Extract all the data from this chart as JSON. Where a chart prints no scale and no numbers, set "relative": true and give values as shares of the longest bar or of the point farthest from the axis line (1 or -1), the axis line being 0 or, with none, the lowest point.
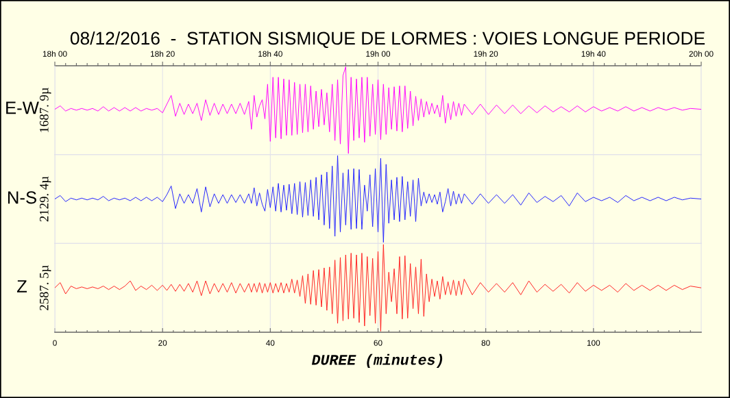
{
  "chart_data": [
    {
      "type": "line",
      "title": "08/12/2016  -  STATION SISMIQUE DE LORMES : VOIES LONGUE PERIODE",
      "ylabel": "1687. 9µ",
      "relative": true,
      "grid": "x",
      "tick_labels": "x",
      "xlim": [
        0,
        120
      ],
      "x2lim": [
        "2016-12-08T18:00",
        "2016-12-08T20:00"
      ],
      "x2ticks": [
        {
          "value": "2016-12-08T18:00",
          "label": "18h 00"
        },
        {
          "value": "2016-12-08T18:20",
          "label": "18h 20"
        },
        {
          "value": "2016-12-08T18:40",
          "label": "18h 40"
        },
        {
          "value": "2016-12-08T19:00",
          "label": "19h 00"
        },
        {
          "value": "2016-12-08T19:20",
          "label": "19h 20"
        },
        {
          "value": "2016-12-08T19:40",
          "label": "19h 40"
        },
        {
          "value": "2016-12-08T20:00",
          "label": "20h 00"
        },
        {
          "value": "2016-12-08T18:02",
          "label": null
        },
        {
          "value": "2016-12-08T18:04",
          "label": null
        },
        {
          "value": "2016-12-08T18:06",
          "label": null
        },
        {
          "value": "2016-12-08T18:08",
          "label": null
        },
        {
          "value": "2016-12-08T18:10",
          "label": null
        },
        {
          "value": "2016-12-08T18:12",
          "label": null
        },
        {
          "value": "2016-12-08T18:14",
          "label": null
        },
        {
          "value": "2016-12-08T18:16",
          "label": null
        },
        {
          "value": "2016-12-08T18:18",
          "label": null
        },
        {
          "value": "2016-12-08T18:22",
          "label": null
        },
        {
          "value": "2016-12-08T18:24",
          "label": null
        },
        {
          "value": "2016-12-08T18:26",
          "label": null
        },
        {
          "value": "2016-12-08T18:28",
          "label": null
        },
        {
          "value": "2016-12-08T18:30",
          "label": null
        },
        {
          "value": "2016-12-08T18:32",
          "label": null
        },
        {
          "value": "2016-12-08T18:34",
          "label": null
        },
        {
          "value": "2016-12-08T18:36",
          "label": null
        },
        {
          "value": "2016-12-08T18:38",
          "label": null
        },
        {
          "value": "2016-12-08T18:42",
          "label": null
        },
        {
          "value": "2016-12-08T18:44",
          "label": null
        },
        {
          "value": "2016-12-08T18:46",
          "label": null
        },
        {
          "value": "2016-12-08T18:48",
          "label": null
        },
        {
          "value": "2016-12-08T18:50",
          "label": null
        },
        {
          "value": "2016-12-08T18:52",
          "label": null
        },
        {
          "value": "2016-12-08T18:54",
          "label": null
        },
        {
          "value": "2016-12-08T18:56",
          "label": null
        },
        {
          "value": "2016-12-08T18:58",
          "label": null
        },
        {
          "value": "2016-12-08T19:02",
          "label": null
        },
        {
          "value": "2016-12-08T19:04",
          "label": null
        },
        {
          "value": "2016-12-08T19:06",
          "label": null
        },
        {
          "value": "2016-12-08T19:08",
          "label": null
        },
        {
          "value": "2016-12-08T19:10",
          "label": null
        },
        {
          "value": "2016-12-08T19:12",
          "label": null
        },
        {
          "value": "2016-12-08T19:14",
          "label": null
        },
        {
          "value": "2016-12-08T19:16",
          "label": null
        },
        {
          "value": "2016-12-08T19:18",
          "label": null
        },
        {
          "value": "2016-12-08T19:22",
          "label": null
        },
        {
          "value": "2016-12-08T19:24",
          "label": null
        },
        {
          "value": "2016-12-08T19:26",
          "label": null
        },
        {
          "value": "2016-12-08T19:28",
          "label": null
        },
        {
          "value": "2016-12-08T19:30",
          "label": null
        },
        {
          "value": "2016-12-08T19:32",
          "label": null
        },
        {
          "value": "2016-12-08T19:34",
          "label": null
        },
        {
          "value": "2016-12-08T19:36",
          "label": null
        },
        {
          "value": "2016-12-08T19:38",
          "label": null
        },
        {
          "value": "2016-12-08T19:42",
          "label": null
        },
        {
          "value": "2016-12-08T19:44",
          "label": null
        },
        {
          "value": "2016-12-08T19:46",
          "label": null
        },
        {
          "value": "2016-12-08T19:48",
          "label": null
        },
        {
          "value": "2016-12-08T19:50",
          "label": null
        },
        {
          "value": "2016-12-08T19:52",
          "label": null
        },
        {
          "value": "2016-12-08T19:54",
          "label": null
        },
        {
          "value": "2016-12-08T19:56",
          "label": null
        },
        {
          "value": "2016-12-08T19:58",
          "label": null
        }
      ],
      "x": [
        0,
        1,
        2,
        3,
        4,
        5,
        6,
        7,
        8,
        9,
        10,
        11,
        12,
        13,
        14,
        15,
        16,
        17,
        18,
        19,
        20,
        20.8,
        21.6,
        22.4,
        23.2,
        24,
        24.8,
        25.6,
        26.4,
        27.2,
        28,
        28.8,
        29.6,
        30.4,
        31.2,
        32,
        32.8,
        33.6,
        34.4,
        35.2,
        36,
        36.5,
        37,
        37.5,
        38,
        38.5,
        39,
        39.5,
        40,
        40.5,
        41,
        41.5,
        42,
        42.5,
        43,
        43.5,
        44,
        44.5,
        45,
        45.5,
        46,
        46.5,
        47,
        47.5,
        48,
        48.5,
        49,
        49.5,
        50,
        50.5,
        51,
        51.5,
        52,
        52.5,
        53,
        53.5,
        54,
        54.5,
        55,
        55.5,
        56,
        56.5,
        57,
        57.5,
        58,
        58.5,
        59,
        59.5,
        60,
        60.5,
        61,
        61.5,
        62,
        62.5,
        63,
        63.5,
        64,
        64.5,
        65,
        65.5,
        66,
        66.5,
        67,
        67.5,
        68,
        68.5,
        69,
        69.5,
        70,
        70.5,
        71,
        71.5,
        72,
        72.5,
        73,
        73.5,
        74,
        74.5,
        75,
        75.5,
        76,
        77.5,
        79,
        80.5,
        82,
        83.5,
        85,
        86.5,
        88,
        89.5,
        91,
        92.5,
        94,
        95.5,
        97,
        98.5,
        100,
        101.5,
        103,
        104.5,
        106,
        107.5,
        109,
        110.5,
        112,
        113.5,
        115,
        116.5,
        118,
        120
      ],
      "series": [
        {
          "name": "E-W",
          "color": "#ff00ff",
          "values": [
            0.51,
            0.55,
            0.49,
            0.52,
            0.5,
            0.52,
            0.5,
            0.52,
            0.49,
            0.54,
            0.49,
            0.53,
            0.49,
            0.53,
            0.49,
            0.53,
            0.49,
            0.52,
            0.5,
            0.52,
            0.47,
            0.57,
            0.67,
            0.43,
            0.58,
            0.45,
            0.57,
            0.46,
            0.58,
            0.38,
            0.62,
            0.44,
            0.58,
            0.45,
            0.57,
            0.46,
            0.57,
            0.46,
            0.58,
            0.45,
            0.6,
            0.28,
            0.67,
            0.42,
            0.55,
            0.62,
            0.4,
            0.8,
            0.14,
            0.88,
            0.18,
            0.88,
            0.17,
            0.86,
            0.21,
            0.85,
            0.21,
            0.82,
            0.22,
            0.8,
            0.24,
            0.8,
            0.25,
            0.78,
            0.28,
            0.72,
            0.31,
            0.74,
            0.33,
            0.7,
            0.25,
            0.8,
            0.15,
            0.85,
            0.11,
            0.9,
            1.0,
            0.0,
            0.88,
            0.15,
            0.86,
            0.18,
            0.88,
            0.13,
            0.88,
            0.2,
            0.8,
            0.22,
            0.85,
            0.16,
            0.8,
            0.22,
            0.76,
            0.28,
            0.77,
            0.26,
            0.78,
            0.25,
            0.78,
            0.29,
            0.72,
            0.32,
            0.66,
            0.38,
            0.63,
            0.42,
            0.6,
            0.45,
            0.58,
            0.46,
            0.56,
            0.42,
            0.67,
            0.35,
            0.58,
            0.39,
            0.6,
            0.43,
            0.58,
            0.44,
            0.57,
            0.45,
            0.57,
            0.45,
            0.56,
            0.46,
            0.56,
            0.46,
            0.55,
            0.47,
            0.55,
            0.48,
            0.54,
            0.48,
            0.55,
            0.48,
            0.54,
            0.49,
            0.53,
            0.49,
            0.54,
            0.49,
            0.53,
            0.49,
            0.53,
            0.5,
            0.53,
            0.5,
            0.52,
            0.51
          ]
        }
      ]
    },
    {
      "type": "line",
      "ylabel": "2129. 4µ",
      "relative": true,
      "grid": "x",
      "tick_labels": false,
      "xlim": [
        0,
        120
      ],
      "xticks": [
        0,
        20,
        40,
        60,
        80,
        100,
        120
      ],
      "x": [
        0,
        1,
        2,
        3,
        4,
        5,
        6,
        7,
        8,
        9,
        10,
        11,
        12,
        13,
        14,
        15,
        16,
        17,
        18,
        19,
        20,
        20.8,
        21.6,
        22.4,
        23.2,
        24,
        24.8,
        25.6,
        26.4,
        27.2,
        28,
        28.8,
        29.6,
        30.4,
        31.2,
        32,
        32.8,
        33.6,
        34.4,
        35.2,
        36,
        36.5,
        37,
        37.5,
        38,
        38.5,
        39,
        39.5,
        40,
        40.5,
        41,
        41.5,
        42,
        42.5,
        43,
        43.5,
        44,
        44.5,
        45,
        45.5,
        46,
        46.5,
        47,
        47.5,
        48,
        48.5,
        49,
        49.5,
        50,
        50.5,
        51,
        51.5,
        52,
        52.5,
        53,
        53.5,
        54,
        54.5,
        55,
        55.5,
        56,
        56.5,
        57,
        57.5,
        58,
        58.5,
        59,
        59.5,
        60,
        60.5,
        61,
        61.5,
        62,
        62.5,
        63,
        63.5,
        64,
        64.5,
        65,
        65.5,
        66,
        66.5,
        67,
        67.5,
        68,
        68.5,
        69,
        69.5,
        70,
        70.5,
        71,
        71.5,
        72,
        72.5,
        73,
        73.5,
        74,
        74.5,
        75,
        75.5,
        76,
        77.5,
        79,
        80.5,
        82,
        83.5,
        85,
        86.5,
        88,
        89.5,
        91,
        92.5,
        94,
        95.5,
        97,
        98.5,
        100,
        101.5,
        103,
        104.5,
        106,
        107.5,
        109,
        110.5,
        112,
        113.5,
        115,
        116.5,
        118,
        120
      ],
      "series": [
        {
          "name": "N-S",
          "color": "#2020ff",
          "values": [
            0.5,
            0.54,
            0.47,
            0.51,
            0.49,
            0.51,
            0.49,
            0.51,
            0.49,
            0.53,
            0.48,
            0.51,
            0.49,
            0.51,
            0.48,
            0.52,
            0.48,
            0.52,
            0.48,
            0.52,
            0.47,
            0.55,
            0.65,
            0.39,
            0.56,
            0.45,
            0.55,
            0.45,
            0.62,
            0.35,
            0.64,
            0.41,
            0.56,
            0.45,
            0.55,
            0.45,
            0.55,
            0.46,
            0.55,
            0.45,
            0.56,
            0.45,
            0.63,
            0.42,
            0.57,
            0.44,
            0.36,
            0.61,
            0.4,
            0.64,
            0.36,
            0.68,
            0.35,
            0.66,
            0.37,
            0.67,
            0.33,
            0.68,
            0.32,
            0.7,
            0.29,
            0.69,
            0.31,
            0.72,
            0.3,
            0.75,
            0.26,
            0.78,
            0.2,
            0.81,
            0.16,
            0.88,
            0.07,
            1.0,
            0.12,
            0.8,
            0.2,
            0.84,
            0.15,
            0.85,
            0.16,
            0.84,
            0.15,
            0.66,
            0.36,
            0.78,
            0.18,
            0.85,
            0.12,
            0.97,
            0.0,
            0.9,
            0.22,
            0.72,
            0.26,
            0.75,
            0.24,
            0.76,
            0.26,
            0.7,
            0.3,
            0.72,
            0.24,
            0.74,
            0.42,
            0.58,
            0.45,
            0.56,
            0.46,
            0.55,
            0.44,
            0.58,
            0.35,
            0.47,
            0.62,
            0.42,
            0.59,
            0.44,
            0.56,
            0.45,
            0.56,
            0.44,
            0.56,
            0.45,
            0.55,
            0.45,
            0.55,
            0.43,
            0.57,
            0.46,
            0.53,
            0.47,
            0.54,
            0.42,
            0.57,
            0.47,
            0.52,
            0.48,
            0.52,
            0.46,
            0.54,
            0.48,
            0.52,
            0.48,
            0.52,
            0.48,
            0.52,
            0.49,
            0.51,
            0.5
          ]
        }
      ]
    },
    {
      "type": "line",
      "ylabel": "2587. 5µ",
      "xlabel": "DUREE (minutes)",
      "relative": true,
      "grid": "x",
      "tick_labels": "x",
      "xlim": [
        0,
        120
      ],
      "xticks": [
        0,
        20,
        40,
        60,
        80,
        100,
        {
          "value": 2,
          "label": null
        },
        {
          "value": 4,
          "label": null
        },
        {
          "value": 6,
          "label": null
        },
        {
          "value": 8,
          "label": null
        },
        {
          "value": 10,
          "label": null
        },
        {
          "value": 12,
          "label": null
        },
        {
          "value": 14,
          "label": null
        },
        {
          "value": 16,
          "label": null
        },
        {
          "value": 18,
          "label": null
        },
        {
          "value": 22,
          "label": null
        },
        {
          "value": 24,
          "label": null
        },
        {
          "value": 26,
          "label": null
        },
        {
          "value": 28,
          "label": null
        },
        {
          "value": 30,
          "label": null
        },
        {
          "value": 32,
          "label": null
        },
        {
          "value": 34,
          "label": null
        },
        {
          "value": 36,
          "label": null
        },
        {
          "value": 38,
          "label": null
        },
        {
          "value": 42,
          "label": null
        },
        {
          "value": 44,
          "label": null
        },
        {
          "value": 46,
          "label": null
        },
        {
          "value": 48,
          "label": null
        },
        {
          "value": 50,
          "label": null
        },
        {
          "value": 52,
          "label": null
        },
        {
          "value": 54,
          "label": null
        },
        {
          "value": 56,
          "label": null
        },
        {
          "value": 58,
          "label": null
        },
        {
          "value": 62,
          "label": null
        },
        {
          "value": 64,
          "label": null
        },
        {
          "value": 66,
          "label": null
        },
        {
          "value": 68,
          "label": null
        },
        {
          "value": 70,
          "label": null
        },
        {
          "value": 72,
          "label": null
        },
        {
          "value": 74,
          "label": null
        },
        {
          "value": 76,
          "label": null
        },
        {
          "value": 78,
          "label": null
        },
        {
          "value": 82,
          "label": null
        },
        {
          "value": 84,
          "label": null
        },
        {
          "value": 86,
          "label": null
        },
        {
          "value": 88,
          "label": null
        },
        {
          "value": 90,
          "label": null
        },
        {
          "value": 92,
          "label": null
        },
        {
          "value": 94,
          "label": null
        },
        {
          "value": 96,
          "label": null
        },
        {
          "value": 98,
          "label": null
        },
        {
          "value": 102,
          "label": null
        },
        {
          "value": 104,
          "label": null
        },
        {
          "value": 106,
          "label": null
        },
        {
          "value": 108,
          "label": null
        },
        {
          "value": 110,
          "label": null
        },
        {
          "value": 112,
          "label": null
        },
        {
          "value": 114,
          "label": null
        },
        {
          "value": 116,
          "label": null
        },
        {
          "value": 118,
          "label": null
        }
      ],
      "x": [
        0,
        1,
        2,
        3,
        4,
        5,
        6,
        7,
        8,
        9,
        10,
        11,
        12,
        13,
        14,
        15,
        16,
        17,
        18,
        19,
        20,
        20.8,
        21.6,
        22.4,
        23.2,
        24,
        24.8,
        25.6,
        26.4,
        27.2,
        28,
        28.8,
        29.6,
        30.4,
        31.2,
        32,
        32.8,
        33.6,
        34.4,
        35.2,
        36,
        36.5,
        37,
        37.5,
        38,
        38.5,
        39,
        39.5,
        40,
        40.5,
        41,
        41.5,
        42,
        42.5,
        43,
        43.5,
        44,
        44.5,
        45,
        45.5,
        46,
        46.5,
        47,
        47.5,
        48,
        48.5,
        49,
        49.5,
        50,
        50.5,
        51,
        51.5,
        52,
        52.5,
        53,
        53.5,
        54,
        54.5,
        55,
        55.5,
        56,
        56.5,
        57,
        57.5,
        58,
        58.5,
        59,
        59.5,
        60,
        60.5,
        61,
        61.5,
        62,
        62.5,
        63,
        63.5,
        64,
        64.5,
        65,
        65.5,
        66,
        66.5,
        67,
        67.5,
        68,
        68.5,
        69,
        69.5,
        70,
        70.5,
        71,
        71.5,
        72,
        72.5,
        73,
        73.5,
        74,
        74.5,
        75,
        75.5,
        76,
        77.5,
        79,
        80.5,
        82,
        83.5,
        85,
        86.5,
        88,
        89.5,
        91,
        92.5,
        94,
        95.5,
        97,
        98.5,
        100,
        101.5,
        103,
        104.5,
        106,
        107.5,
        109,
        110.5,
        112,
        113.5,
        115,
        116.5,
        118,
        120
      ],
      "series": [
        {
          "name": "Z",
          "color": "#ff2020",
          "values": [
            0.5,
            0.56,
            0.43,
            0.52,
            0.49,
            0.51,
            0.49,
            0.51,
            0.49,
            0.52,
            0.48,
            0.52,
            0.48,
            0.52,
            0.58,
            0.47,
            0.52,
            0.48,
            0.53,
            0.47,
            0.53,
            0.47,
            0.54,
            0.46,
            0.54,
            0.46,
            0.55,
            0.45,
            0.58,
            0.41,
            0.58,
            0.43,
            0.55,
            0.45,
            0.55,
            0.45,
            0.56,
            0.44,
            0.55,
            0.45,
            0.55,
            0.45,
            0.55,
            0.45,
            0.56,
            0.44,
            0.55,
            0.45,
            0.56,
            0.44,
            0.55,
            0.45,
            0.56,
            0.44,
            0.55,
            0.45,
            0.6,
            0.44,
            0.59,
            0.4,
            0.64,
            0.32,
            0.66,
            0.31,
            0.7,
            0.3,
            0.71,
            0.28,
            0.73,
            0.24,
            0.74,
            0.2,
            0.82,
            0.09,
            0.85,
            0.12,
            0.88,
            0.14,
            0.9,
            0.15,
            0.88,
            0.1,
            0.9,
            0.06,
            0.86,
            0.18,
            0.84,
            0.09,
            0.92,
            0.0,
            1.0,
            0.2,
            0.68,
            0.34,
            0.72,
            0.2,
            0.86,
            0.14,
            0.87,
            0.15,
            0.78,
            0.26,
            0.74,
            0.2,
            0.83,
            0.17,
            0.66,
            0.34,
            0.6,
            0.4,
            0.58,
            0.37,
            0.63,
            0.42,
            0.57,
            0.42,
            0.59,
            0.41,
            0.58,
            0.42,
            0.6,
            0.42,
            0.56,
            0.45,
            0.55,
            0.45,
            0.56,
            0.42,
            0.58,
            0.45,
            0.54,
            0.46,
            0.54,
            0.44,
            0.56,
            0.46,
            0.53,
            0.47,
            0.53,
            0.45,
            0.55,
            0.47,
            0.53,
            0.47,
            0.53,
            0.47,
            0.53,
            0.48,
            0.52,
            0.5
          ]
        }
      ]
    }
  ]
}
